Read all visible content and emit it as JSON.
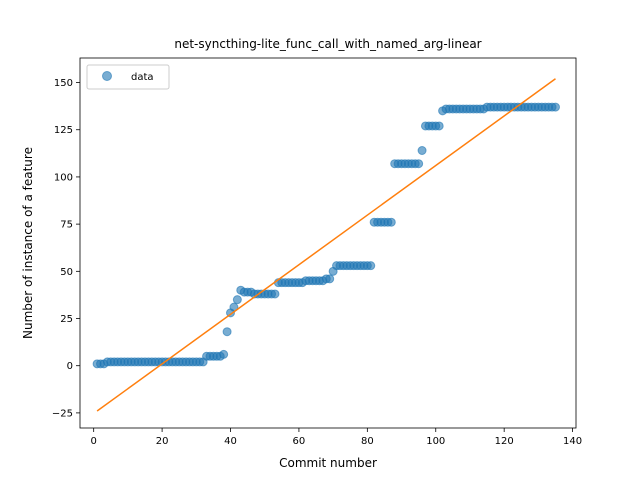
{
  "chart_data": {
    "type": "scatter",
    "title": "net-syncthing-lite_func_call_with_named_arg-linear",
    "xlabel": "Commit number",
    "ylabel": "Number of instance of a feature",
    "xlim": [
      -4,
      141
    ],
    "ylim": [
      -33,
      163
    ],
    "xticks": [
      0,
      20,
      40,
      60,
      80,
      100,
      120,
      140
    ],
    "yticks": [
      -25,
      0,
      25,
      50,
      75,
      100,
      125,
      150
    ],
    "grid": false,
    "legend": {
      "position": "top-left",
      "entries": [
        "data"
      ]
    },
    "colors": {
      "points": "#1f77b4",
      "fit_line": "#ff7f0e"
    },
    "series": [
      {
        "name": "data",
        "kind": "scatter",
        "x": [
          1,
          2,
          3,
          4,
          5,
          6,
          7,
          8,
          9,
          10,
          11,
          12,
          13,
          14,
          15,
          16,
          17,
          18,
          19,
          20,
          21,
          22,
          23,
          24,
          25,
          26,
          27,
          28,
          29,
          30,
          31,
          32,
          33,
          34,
          35,
          36,
          37,
          38,
          39,
          40,
          41,
          42,
          43,
          44,
          45,
          46,
          47,
          48,
          49,
          50,
          51,
          52,
          53,
          54,
          55,
          56,
          57,
          58,
          59,
          60,
          61,
          62,
          63,
          64,
          65,
          66,
          67,
          68,
          69,
          70,
          71,
          72,
          73,
          74,
          75,
          76,
          77,
          78,
          79,
          80,
          81,
          82,
          83,
          84,
          85,
          86,
          87,
          88,
          89,
          90,
          91,
          92,
          93,
          94,
          95,
          96,
          97,
          98,
          99,
          100,
          101,
          102,
          103,
          104,
          105,
          106,
          107,
          108,
          109,
          110,
          111,
          112,
          113,
          114,
          115,
          116,
          117,
          118,
          119,
          120,
          121,
          122,
          123,
          124,
          125,
          126,
          127,
          128,
          129,
          130,
          131,
          132,
          133,
          134,
          135
        ],
        "y": [
          1,
          1,
          1,
          2,
          2,
          2,
          2,
          2,
          2,
          2,
          2,
          2,
          2,
          2,
          2,
          2,
          2,
          2,
          2,
          2,
          2,
          2,
          2,
          2,
          2,
          2,
          2,
          2,
          2,
          2,
          2,
          2,
          5,
          5,
          5,
          5,
          5,
          6,
          18,
          28,
          31,
          35,
          40,
          39,
          39,
          39,
          38,
          38,
          38,
          38,
          38,
          38,
          38,
          44,
          44,
          44,
          44,
          44,
          44,
          44,
          44,
          45,
          45,
          45,
          45,
          45,
          45,
          46,
          46,
          50,
          53,
          53,
          53,
          53,
          53,
          53,
          53,
          53,
          53,
          53,
          53,
          76,
          76,
          76,
          76,
          76,
          76,
          107,
          107,
          107,
          107,
          107,
          107,
          107,
          107,
          114,
          127,
          127,
          127,
          127,
          127,
          135,
          136,
          136,
          136,
          136,
          136,
          136,
          136,
          136,
          136,
          136,
          136,
          136,
          137,
          137,
          137,
          137,
          137,
          137,
          137,
          137,
          137,
          137,
          137,
          137,
          137,
          137,
          137,
          137,
          137,
          137,
          137,
          137,
          137
        ]
      },
      {
        "name": "",
        "kind": "line",
        "x": [
          1,
          135
        ],
        "y": [
          -24,
          152
        ]
      }
    ]
  }
}
